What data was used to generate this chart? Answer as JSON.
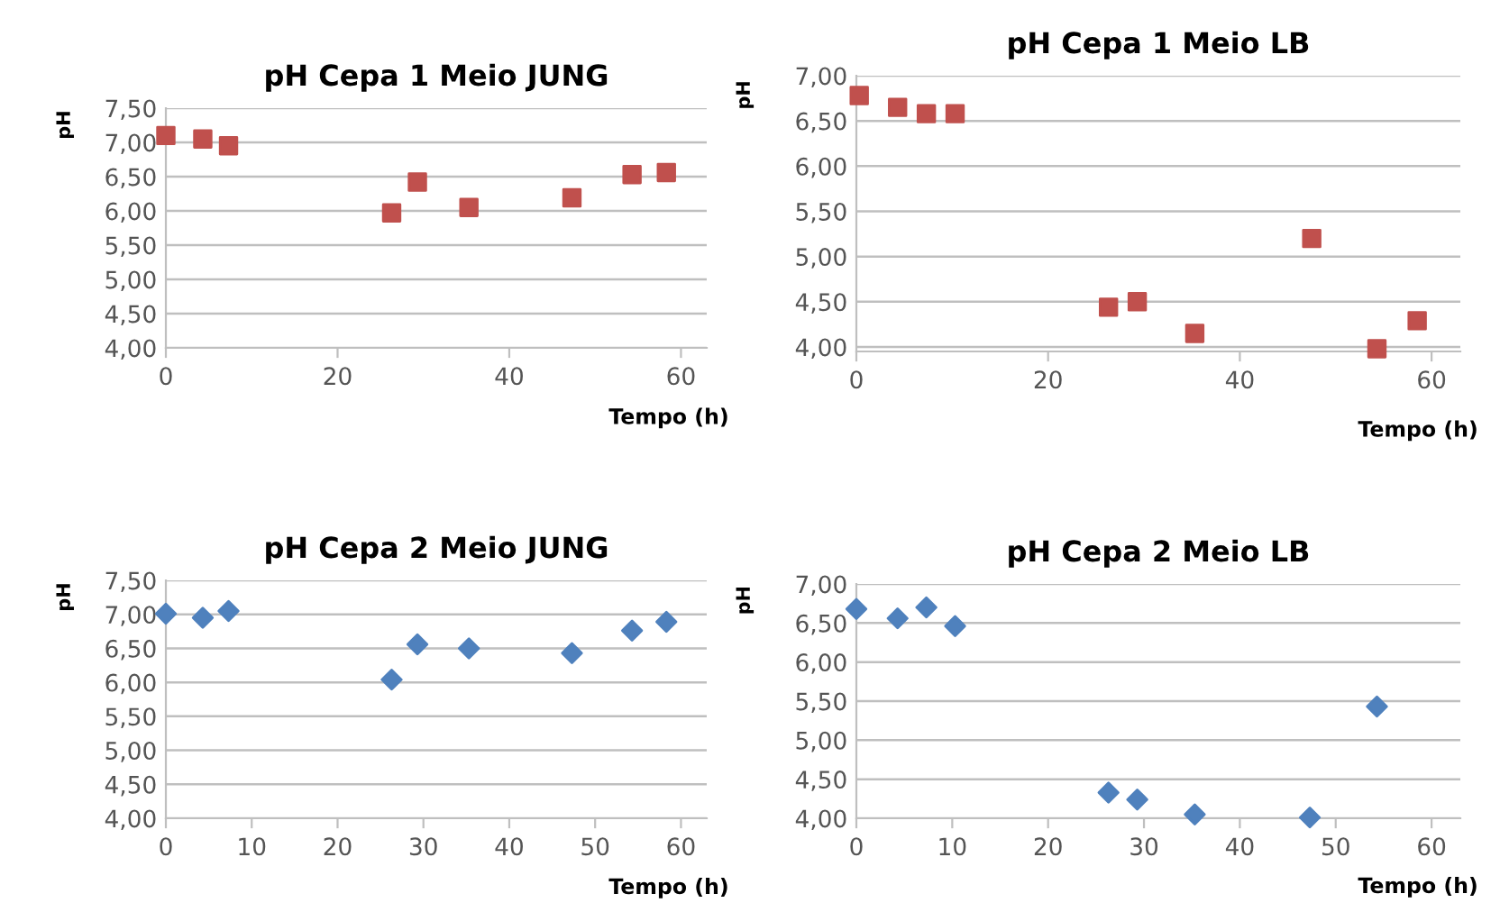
{
  "chart_data": [
    {
      "type": "scatter",
      "title": "pH Cepa 1 Meio JUNG",
      "xlabel": "Tempo (h)",
      "ylabel": "pH",
      "marker": "square",
      "grid": "y",
      "legend": false,
      "x": [
        0,
        4.3,
        7.3,
        26.3,
        29.3,
        35.3,
        47.3,
        54.3,
        58.3
      ],
      "series": [
        {
          "color": "#c0504d",
          "values": [
            7.1,
            7.05,
            6.95,
            5.97,
            6.42,
            6.05,
            6.19,
            6.53,
            6.56
          ]
        }
      ],
      "xlim": [
        0,
        63
      ],
      "xticks": [
        0,
        20,
        40,
        60
      ],
      "ylim": [
        4,
        7.5
      ],
      "yticks": [
        {
          "value": 4,
          "label": "4,00"
        },
        {
          "value": 4.5,
          "label": "4,50"
        },
        {
          "value": 5,
          "label": "5,00"
        },
        {
          "value": 5.5,
          "label": "5,50"
        },
        {
          "value": 6,
          "label": "6,00"
        },
        {
          "value": 6.5,
          "label": "6,50"
        },
        {
          "value": 7,
          "label": "7,00"
        },
        {
          "value": 7.5,
          "label": "7,50"
        }
      ]
    },
    {
      "type": "scatter",
      "title": "pH Cepa 1 Meio LB",
      "xlabel": "Tempo (h)",
      "ylabel": "pH",
      "marker": "square",
      "grid": "y",
      "legend": false,
      "x": [
        0.3,
        4.3,
        7.3,
        10.3,
        26.3,
        29.3,
        35.3,
        47.5,
        54.3,
        58.5
      ],
      "series": [
        {
          "color": "#c0504d",
          "values": [
            6.78,
            6.65,
            6.58,
            6.58,
            4.44,
            4.5,
            4.15,
            5.2,
            3.98,
            4.29
          ]
        }
      ],
      "xlim": [
        0,
        63
      ],
      "xticks": [
        0,
        20,
        40,
        60
      ],
      "ylim": [
        3.95,
        7
      ],
      "yticks": [
        {
          "value": 4,
          "label": "4,00"
        },
        {
          "value": 4.5,
          "label": "4,50"
        },
        {
          "value": 5,
          "label": "5,00"
        },
        {
          "value": 5.5,
          "label": "5,50"
        },
        {
          "value": 6,
          "label": "6,00"
        },
        {
          "value": 6.5,
          "label": "6,50"
        },
        {
          "value": 7,
          "label": "7,00"
        }
      ]
    },
    {
      "type": "scatter",
      "title": "pH Cepa 2 Meio JUNG",
      "xlabel": "Tempo (h)",
      "ylabel": "pH",
      "marker": "diamond",
      "grid": "y",
      "legend": false,
      "x": [
        0,
        4.3,
        7.3,
        26.3,
        29.3,
        35.3,
        47.3,
        54.3,
        58.3
      ],
      "series": [
        {
          "color": "#4f81bd",
          "values": [
            7.01,
            6.95,
            7.05,
            6.04,
            6.56,
            6.5,
            6.43,
            6.76,
            6.89
          ]
        }
      ],
      "xlim": [
        0,
        63
      ],
      "xticks": [
        0,
        10,
        20,
        30,
        40,
        50,
        60
      ],
      "ylim": [
        4,
        7.5
      ],
      "yticks": [
        {
          "value": 4,
          "label": "4,00"
        },
        {
          "value": 4.5,
          "label": "4,50"
        },
        {
          "value": 5,
          "label": "5,00"
        },
        {
          "value": 5.5,
          "label": "5,50"
        },
        {
          "value": 6,
          "label": "6,00"
        },
        {
          "value": 6.5,
          "label": "6,50"
        },
        {
          "value": 7,
          "label": "7,00"
        },
        {
          "value": 7.5,
          "label": "7,50"
        }
      ]
    },
    {
      "type": "scatter",
      "title": "pH Cepa 2 Meio LB",
      "xlabel": "Tempo (h)",
      "ylabel": "pH",
      "marker": "diamond",
      "grid": "y",
      "legend": false,
      "x": [
        0,
        4.3,
        7.3,
        10.3,
        26.3,
        29.3,
        35.3,
        47.3,
        54.3
      ],
      "series": [
        {
          "color": "#4f81bd",
          "values": [
            6.68,
            6.56,
            6.7,
            6.46,
            4.33,
            4.24,
            4.05,
            4.01,
            5.43
          ]
        }
      ],
      "xlim": [
        0,
        63
      ],
      "xticks": [
        0,
        10,
        20,
        30,
        40,
        50,
        60
      ],
      "ylim": [
        4,
        7
      ],
      "yticks": [
        {
          "value": 4,
          "label": "4,00"
        },
        {
          "value": 4.5,
          "label": "4,50"
        },
        {
          "value": 5,
          "label": "5,00"
        },
        {
          "value": 5.5,
          "label": "5,50"
        },
        {
          "value": 6,
          "label": "6,00"
        },
        {
          "value": 6.5,
          "label": "6,50"
        },
        {
          "value": 7,
          "label": "7,00"
        }
      ]
    }
  ]
}
